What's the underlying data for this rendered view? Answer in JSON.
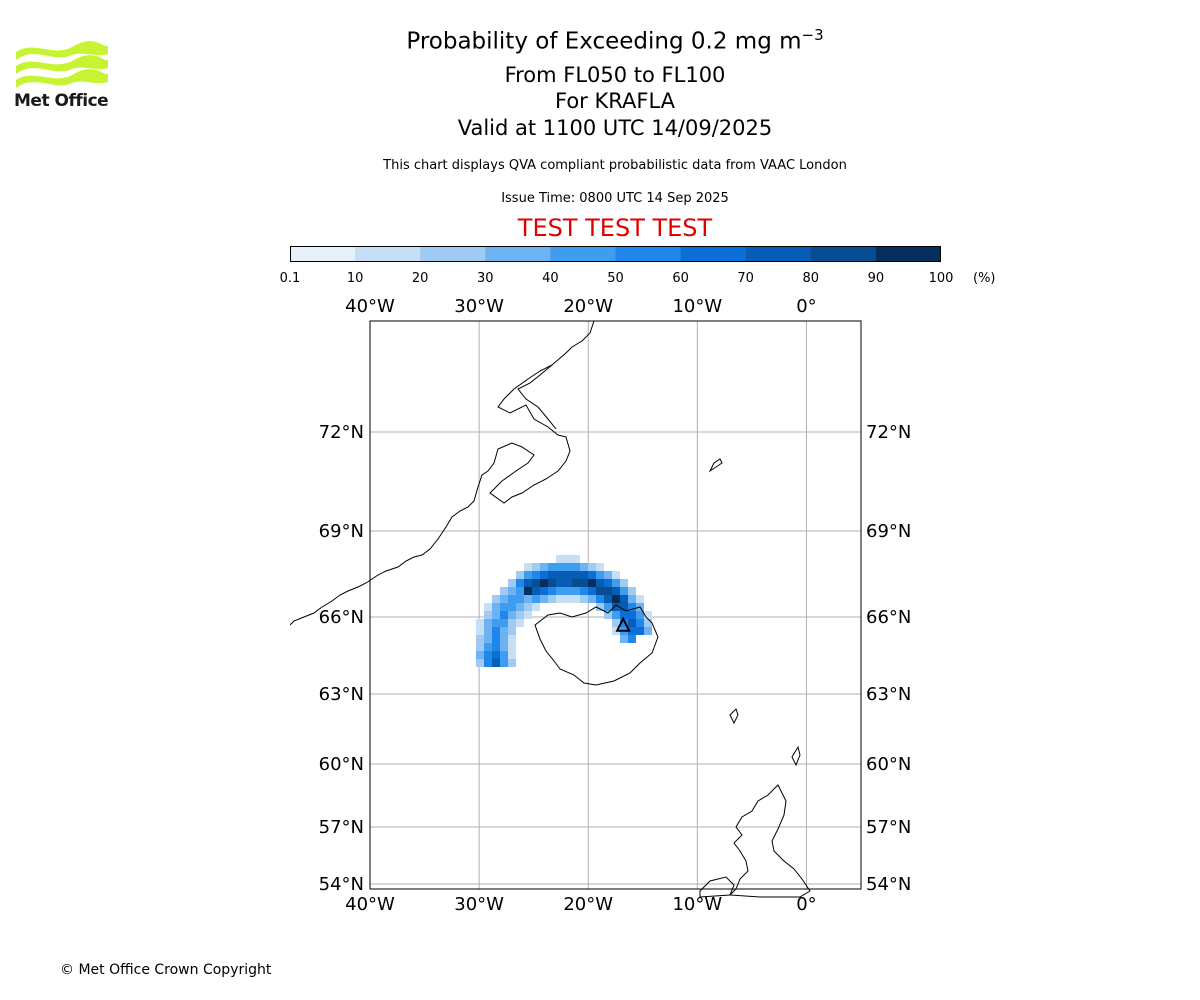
{
  "logo": {
    "text": "Met Office",
    "icon": "met-office-wave-logo",
    "color": "#c6f432"
  },
  "header": {
    "title_main": "Probability of Exceeding 0.2 mg m",
    "title_sup": "−3",
    "level_range": "From FL050 to FL100",
    "volcano": "For KRAFLA",
    "valid_time": "Valid at 1100 UTC 14/09/2025",
    "description": "This chart displays QVA compliant probabilistic data from VAAC London",
    "issue_time": "Issue Time: 0800 UTC 14 Sep 2025",
    "test_banner": "TEST TEST TEST",
    "test_color": "#e00000"
  },
  "colorbar": {
    "ticks": [
      "0.1",
      "10",
      "20",
      "30",
      "40",
      "50",
      "60",
      "70",
      "80",
      "90",
      "100"
    ],
    "unit": "(%)",
    "colors": [
      "#e7f1fb",
      "#c6dff6",
      "#9fcaf2",
      "#6db2f3",
      "#3f9df0",
      "#1f87ea",
      "#0b6fd7",
      "#075cb5",
      "#084c92",
      "#062e5d"
    ]
  },
  "map": {
    "lon_range": [
      -40,
      5
    ],
    "lat_range": [
      54,
      75
    ],
    "lon_labels": [
      "40°W",
      "30°W",
      "20°W",
      "10°W",
      "0°"
    ],
    "lat_labels": [
      "72°N",
      "69°N",
      "66°N",
      "63°N",
      "60°N",
      "57°N",
      "54°N"
    ],
    "grid": true,
    "volcano_marker": {
      "lon": -16.8,
      "lat": 65.7,
      "icon": "volcano-triangle-icon"
    }
  },
  "footer": {
    "copyright": "© Met Office Crown Copyright"
  }
}
